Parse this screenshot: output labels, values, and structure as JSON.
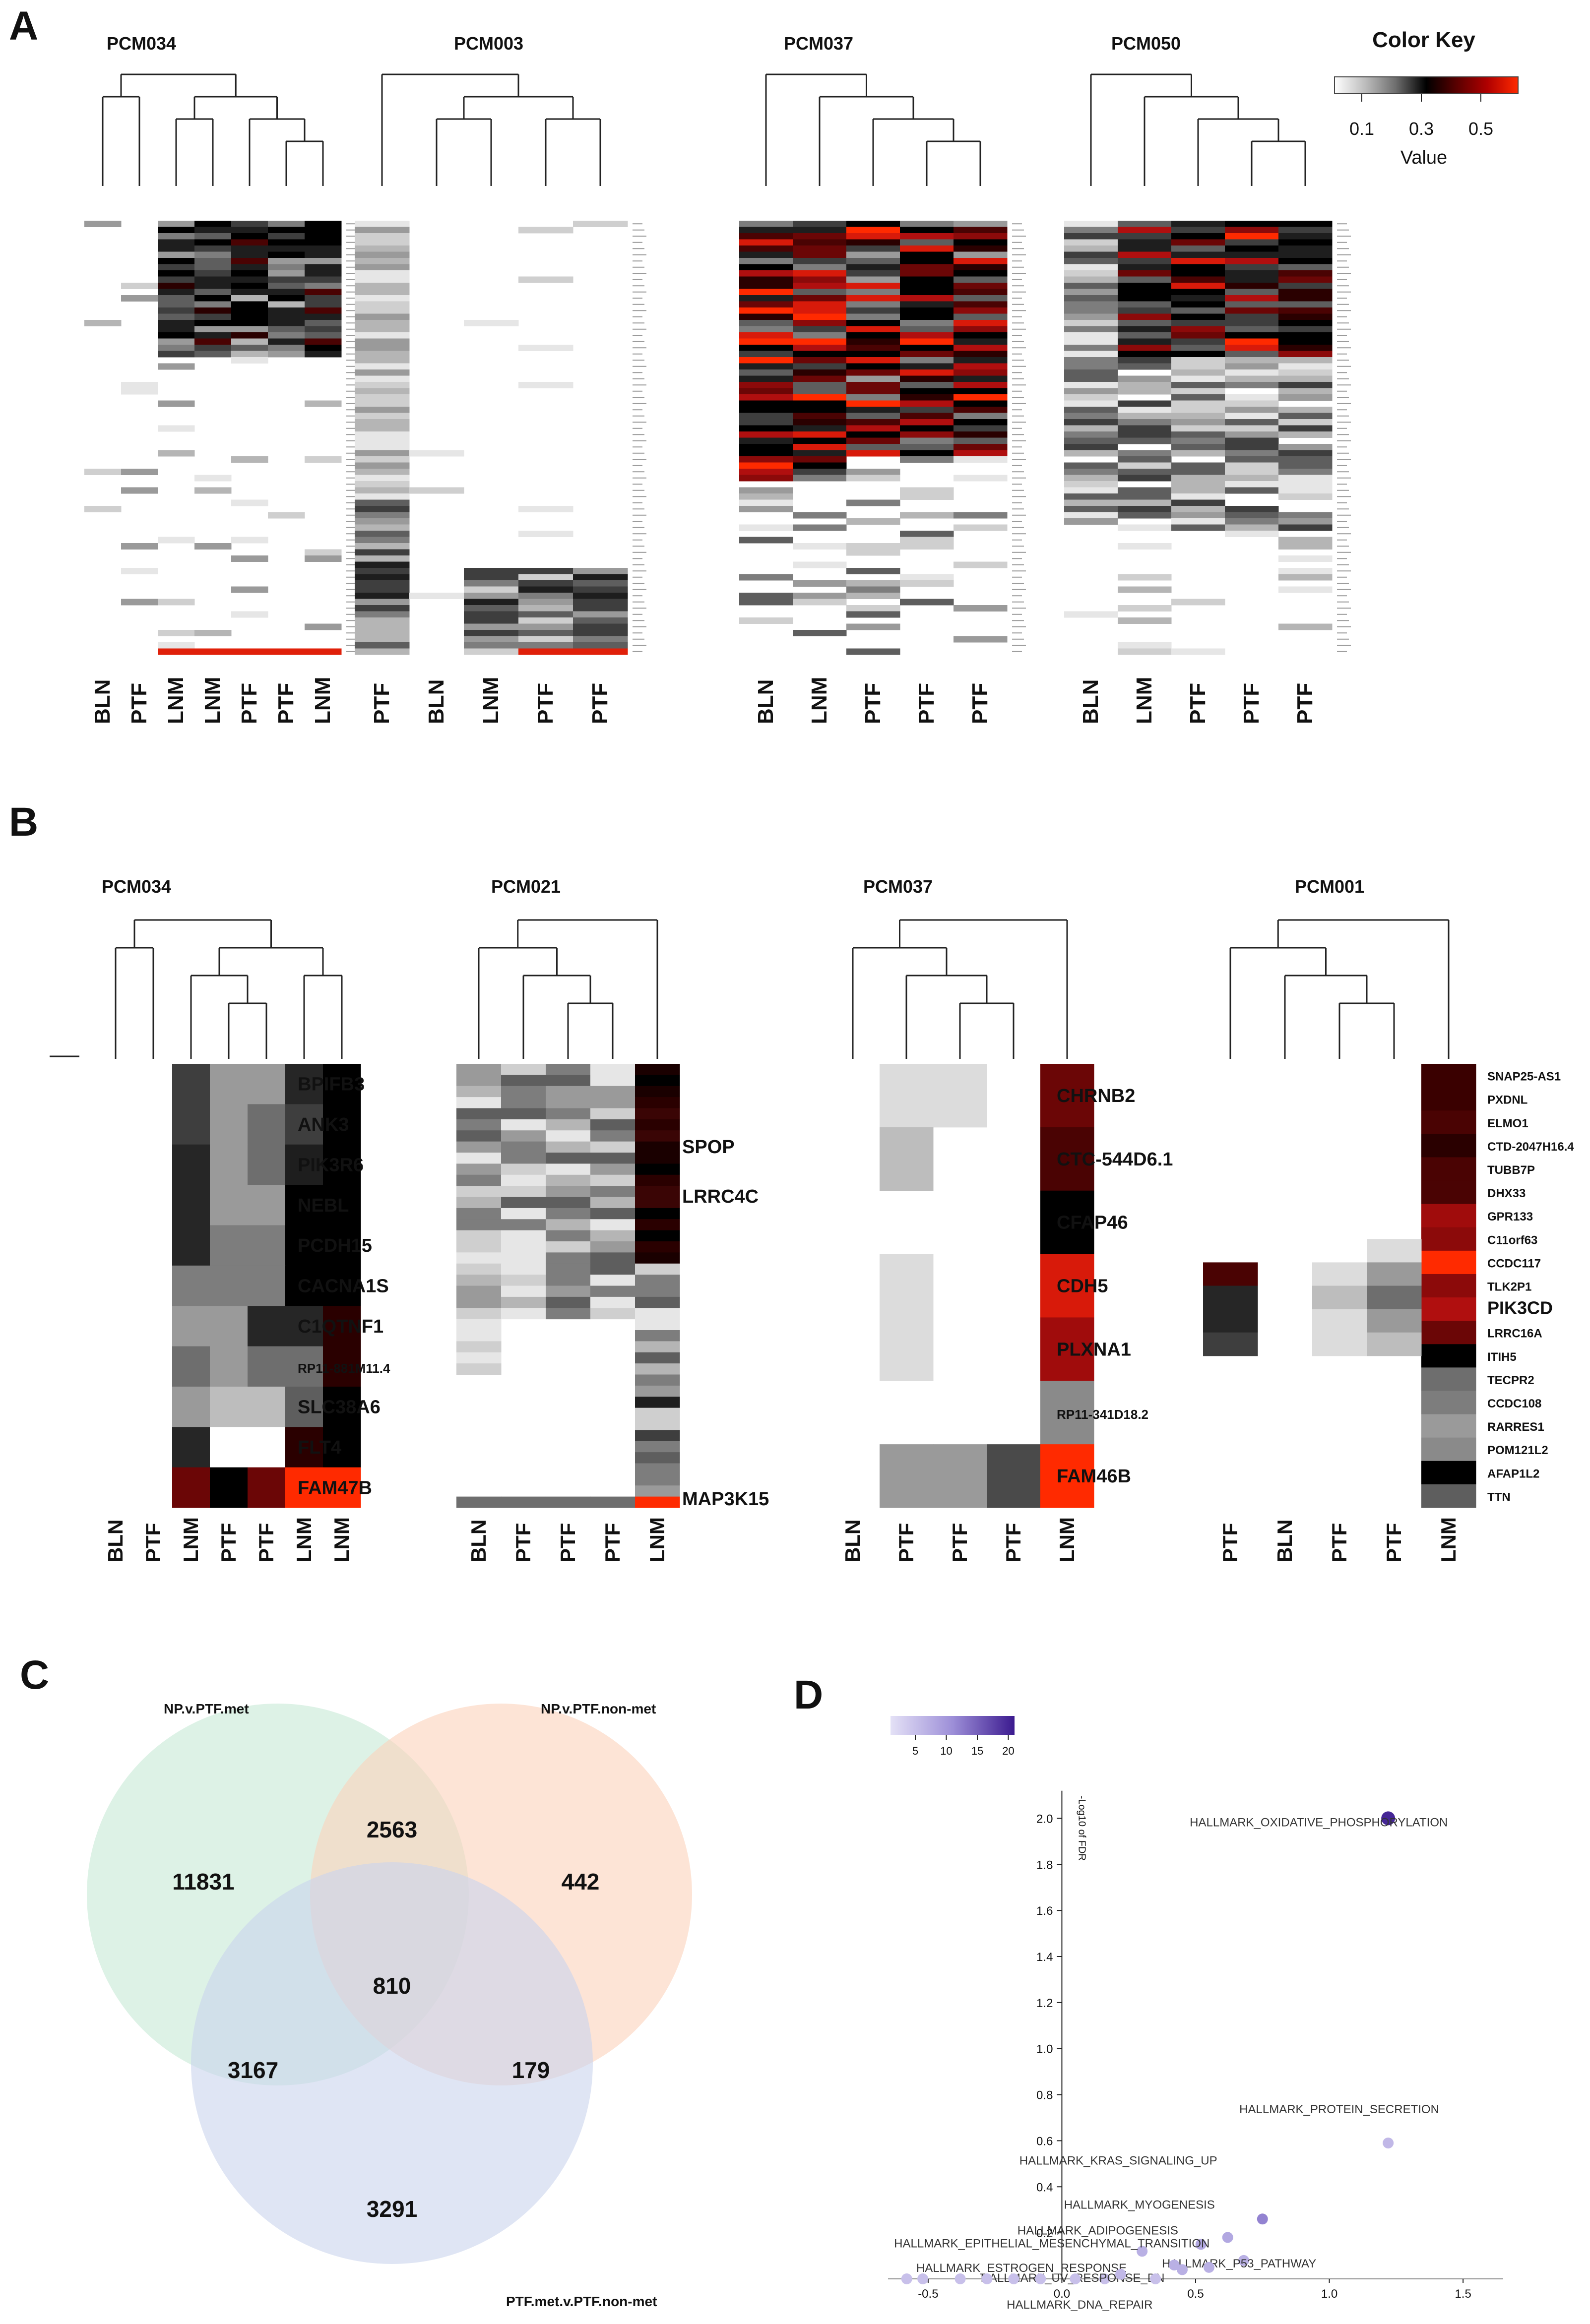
{
  "panel_letters": [
    "A",
    "B",
    "C",
    "D"
  ],
  "panelA": {
    "titles": [
      "PCM034",
      "PCM003",
      "PCM037",
      "PCM050"
    ],
    "columns": [
      [
        "BLN",
        "PTF",
        "LNM",
        "LNM",
        "PTF",
        "PTF",
        "LNM"
      ],
      [
        "PTF",
        "BLN",
        "LNM",
        "PTF",
        "PTF"
      ],
      [
        "BLN",
        "LNM",
        "PTF",
        "PTF",
        "PTF"
      ],
      [
        "BLN",
        "LNM",
        "PTF",
        "PTF",
        "PTF"
      ]
    ],
    "color_key": {
      "title": "Color Key",
      "ticks": [
        "0.1",
        "0.3",
        "0.5"
      ],
      "label": "Value",
      "colors": [
        "#ffffff",
        "#bdbdbd",
        "#6e6e6e",
        "#000000",
        "#5a0000",
        "#b00000",
        "#ff2a00"
      ]
    }
  },
  "panelB": {
    "titles": [
      "PCM034",
      "PCM021",
      "PCM037",
      "PCM001"
    ],
    "columns": [
      [
        "BLN",
        "PTF",
        "LNM",
        "PTF",
        "PTF",
        "LNM",
        "LNM"
      ],
      [
        "BLN",
        "PTF",
        "PTF",
        "PTF",
        "LNM"
      ],
      [
        "BLN",
        "PTF",
        "PTF",
        "PTF",
        "LNM"
      ],
      [
        "PTF",
        "BLN",
        "PTF",
        "PTF",
        "LNM"
      ]
    ],
    "genes": [
      [
        "BPIFB3",
        "ANK3",
        "PIK3R6",
        "NEBL",
        "PCDH15",
        "CACNA1S",
        "C1QTNF1",
        "RP11-881M11.4",
        "SLC38A6",
        "FLT4",
        "FAM47B"
      ],
      [
        "SPOP",
        "LRRC4C",
        "MAP3K15"
      ],
      [
        "CHRNB2",
        "CTC-544D6.1",
        "CFAP46",
        "CDH5",
        "PLXNA1",
        "RP11-341D18.2",
        "FAM46B"
      ],
      [
        "SNAP25-AS1",
        "PXDNL",
        "ELMO1",
        "CTD-2047H16.4",
        "TUBB7P",
        "DHX33",
        "GPR133",
        "C11orf63",
        "CCDC117",
        "TLK2P1",
        "PIK3CD",
        "LRRC16A",
        "ITIH5",
        "TECPR2",
        "CCDC108",
        "RARRES1",
        "POM121L2",
        "AFAP1L2",
        "TTN"
      ]
    ]
  },
  "panelC": {
    "sets": [
      "NP.v.PTF.met",
      "NP.v.PTF.non-met",
      "PTF.met.v.PTF.non-met"
    ],
    "colors": [
      "#c6e9d6",
      "#fbd2bb",
      "#c9d3ec"
    ],
    "regions": {
      "only_a": "11831",
      "a_b": "2563",
      "only_b": "442",
      "a_b_c": "810",
      "a_c": "3167",
      "b_c": "179",
      "only_c": "3291"
    }
  },
  "panelD": {
    "chart_data": {
      "type": "scatter",
      "ylabel": "-Log10 of FDR",
      "xlabel": "",
      "xlim": [
        -0.65,
        1.65
      ],
      "ylim": [
        0,
        2.1
      ],
      "x_ticks": [
        "-0.5",
        "0.0",
        "0.5",
        "1.0",
        "1.5"
      ],
      "y_ticks": [
        "0.2",
        "0.4",
        "0.6",
        "0.8",
        "1.0",
        "1.2",
        "1.4",
        "1.6",
        "1.8",
        "2.0"
      ],
      "colorbar_ticks": [
        "5",
        "10",
        "15",
        "20"
      ],
      "colorbar_colors": [
        "#e4e1f6",
        "#9d8fd8",
        "#3b1a8f"
      ],
      "points": [
        {
          "x": 1.22,
          "y": 2.0,
          "label": "HALLMARK_OXIDATIVE_PHOSPHORYLATION",
          "c": 20
        },
        {
          "x": 1.22,
          "y": 0.59,
          "label": "HALLMARK_PROTEIN_SECRETION",
          "c": 6
        },
        {
          "x": 0.75,
          "y": 0.26,
          "label": "HALLMARK_KRAS_SIGNALING_UP",
          "c": 12
        },
        {
          "x": 0.62,
          "y": 0.18,
          "label": "HALLMARK_MYOGENESIS",
          "c": 8
        },
        {
          "x": 0.52,
          "y": 0.15,
          "label": "HALLMARK_ADIPOGENESIS",
          "c": 8
        },
        {
          "x": 0.3,
          "y": 0.12,
          "label": "HALLMARK_EPITHELIAL_MESENCHYMAL_TRANSITION",
          "c": 7
        },
        {
          "x": 0.68,
          "y": 0.08,
          "label": "HALLMARK_P53_PATHWAY",
          "c": 7
        },
        {
          "x": 0.42,
          "y": 0.06,
          "label": "HALLMARK_ESTROGEN_RESPONSE",
          "c": 7
        },
        {
          "x": 0.16,
          "y": 0.0,
          "label": "HALLMARK_UV_RESPONSE_DN",
          "c": 5
        },
        {
          "x": 0.35,
          "y": 0.0,
          "label": "HALLMARK_DNA_REPAIR",
          "c": 5
        },
        {
          "x": -0.58,
          "y": 0.0,
          "label": "",
          "c": 5
        },
        {
          "x": -0.52,
          "y": 0.0,
          "label": "",
          "c": 5
        },
        {
          "x": -0.38,
          "y": 0.0,
          "label": "",
          "c": 5
        },
        {
          "x": -0.28,
          "y": 0.0,
          "label": "",
          "c": 5
        },
        {
          "x": -0.18,
          "y": 0.0,
          "label": "",
          "c": 5
        },
        {
          "x": -0.08,
          "y": 0.0,
          "label": "",
          "c": 5
        },
        {
          "x": 0.05,
          "y": 0.0,
          "label": "",
          "c": 5
        },
        {
          "x": 0.22,
          "y": 0.02,
          "label": "",
          "c": 6
        },
        {
          "x": 0.45,
          "y": 0.04,
          "label": "",
          "c": 7
        },
        {
          "x": 0.55,
          "y": 0.05,
          "label": "",
          "c": 7
        }
      ]
    }
  }
}
